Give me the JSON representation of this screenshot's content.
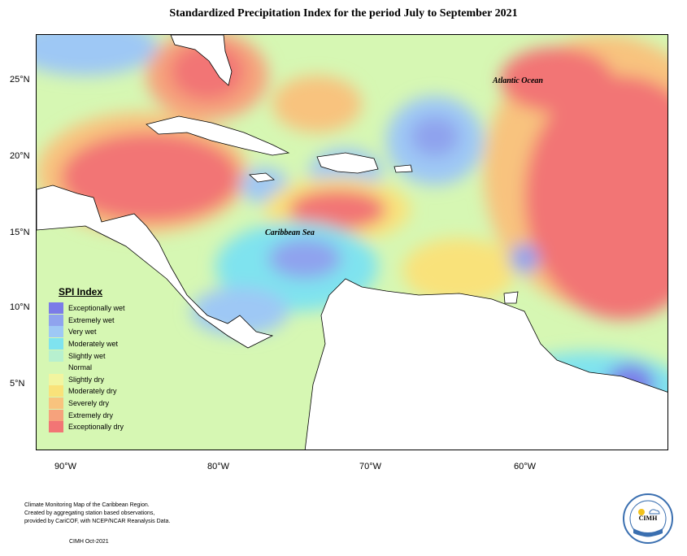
{
  "title": "Standardized Precipitation Index for the period July to September 2021",
  "map_labels": {
    "atlantic": "Atlantic Ocean",
    "caribbean": "Caribbean Sea"
  },
  "latitude_labels": [
    "25°N",
    "20°N",
    "15°N",
    "10°N",
    "5°N"
  ],
  "longitude_labels": [
    "90°W",
    "80°W",
    "70°W",
    "60°W"
  ],
  "legend": {
    "title": "SPI Index",
    "items": [
      {
        "label": "Exceptionally wet",
        "color": "#7b7be8"
      },
      {
        "label": "Extremely wet",
        "color": "#8fa3ee"
      },
      {
        "label": "Very wet",
        "color": "#9ec8f5"
      },
      {
        "label": "Moderately wet",
        "color": "#7fe3ef"
      },
      {
        "label": "Slightly wet",
        "color": "#b7f0cf"
      },
      {
        "label": "Normal",
        "color": "#d6f7b3"
      },
      {
        "label": "Slightly dry",
        "color": "#f2f5a0"
      },
      {
        "label": "Moderately dry",
        "color": "#f9e27a"
      },
      {
        "label": "Severely dry",
        "color": "#f8c37e"
      },
      {
        "label": "Extremely dry",
        "color": "#f6a27c"
      },
      {
        "label": "Exceptionally dry",
        "color": "#f27575"
      }
    ]
  },
  "footer": {
    "line1": "Climate Monitoring Map of the Caribbean Region.",
    "line2": "Created by aggregating station based observations,",
    "line3": "provided by CariCOF, with NCEP/NCAR Reanalysis Data.",
    "date": "CIMH Oct-2021"
  },
  "logo": {
    "text": "CIMH",
    "icon": "cimh-logo-icon"
  }
}
